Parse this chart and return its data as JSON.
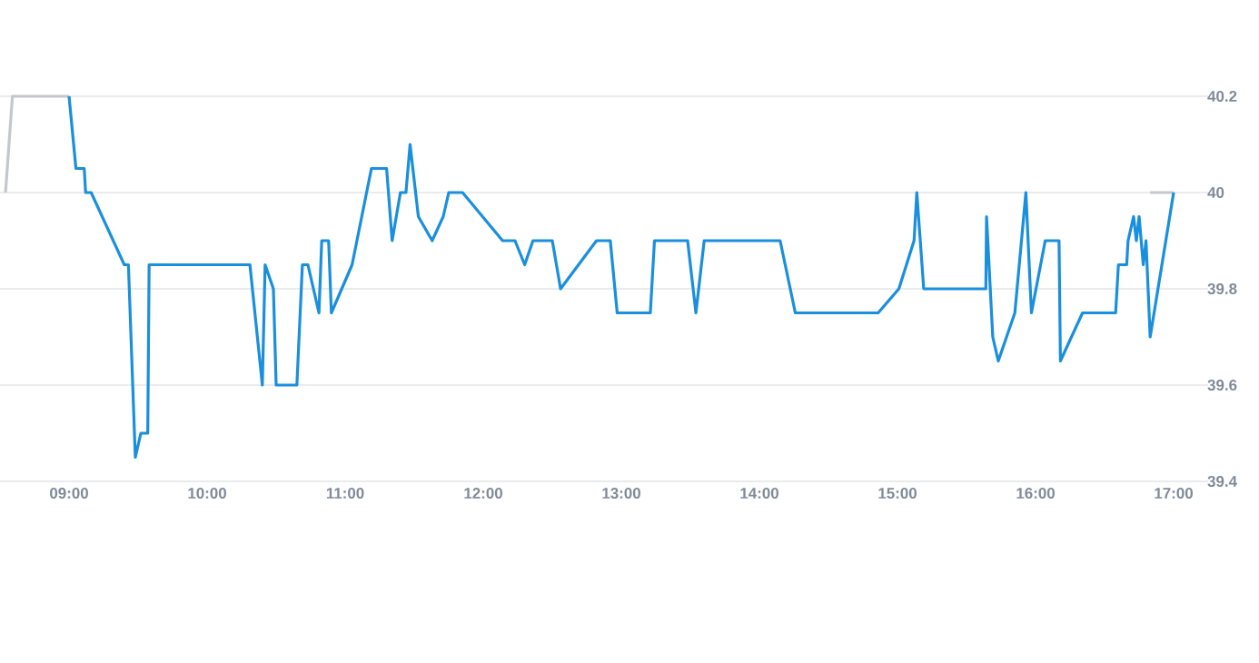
{
  "chart_data": {
    "type": "line",
    "xlim": [
      8.5,
      17.25
    ],
    "ylim": [
      39.4,
      40.2
    ],
    "xticks": [
      {
        "value": 9,
        "label": "09:00"
      },
      {
        "value": 10,
        "label": "10:00"
      },
      {
        "value": 11,
        "label": "11:00"
      },
      {
        "value": 12,
        "label": "12:00"
      },
      {
        "value": 13,
        "label": "13:00"
      },
      {
        "value": 14,
        "label": "14:00"
      },
      {
        "value": 15,
        "label": "15:00"
      },
      {
        "value": 16,
        "label": "16:00"
      },
      {
        "value": 17,
        "label": "17:00"
      }
    ],
    "yticks": [
      39.4,
      39.6,
      39.8,
      40,
      40.2
    ],
    "grid": "y",
    "marker": "none",
    "line_style": "solid",
    "series": [
      {
        "color": "#c3c8cd",
        "x": [
          8.54,
          8.59,
          9.0,
          12.0,
          16.83,
          17.0
        ],
        "values": [
          40,
          40.2,
          40.2,
          null,
          40,
          40
        ]
      },
      {
        "color": "#1a8fdd",
        "x": [
          9.0,
          9.05,
          9.11,
          9.12,
          9.16,
          9.4,
          9.43,
          9.48,
          9.52,
          9.57,
          9.58,
          10.31,
          10.4,
          10.42,
          10.48,
          10.5,
          10.65,
          10.69,
          10.73,
          10.81,
          10.83,
          10.88,
          10.9,
          11.05,
          11.19,
          11.3,
          11.34,
          11.4,
          11.44,
          11.47,
          11.53,
          11.63,
          11.71,
          11.75,
          11.85,
          12.14,
          12.23,
          12.3,
          12.36,
          12.5,
          12.56,
          12.82,
          12.92,
          12.97,
          13.21,
          13.24,
          13.48,
          13.54,
          13.6,
          14.15,
          14.26,
          14.86,
          15.01,
          15.12,
          15.14,
          15.19,
          15.64,
          15.645,
          15.69,
          15.73,
          15.85,
          15.93,
          15.97,
          16.07,
          16.17,
          16.18,
          16.34,
          16.58,
          16.6,
          16.66,
          16.67,
          16.71,
          16.73,
          16.75,
          16.78,
          16.8,
          16.83,
          17.0
        ],
        "values": [
          40.2,
          40.05,
          40.05,
          40.0,
          40.0,
          39.85,
          39.85,
          39.45,
          39.5,
          39.5,
          39.85,
          39.85,
          39.6,
          39.85,
          39.8,
          39.6,
          39.6,
          39.85,
          39.85,
          39.75,
          39.9,
          39.9,
          39.75,
          39.85,
          40.05,
          40.05,
          39.9,
          40.0,
          40.0,
          40.1,
          39.95,
          39.9,
          39.95,
          40.0,
          40.0,
          39.9,
          39.9,
          39.85,
          39.9,
          39.9,
          39.8,
          39.9,
          39.9,
          39.75,
          39.75,
          39.9,
          39.9,
          39.75,
          39.9,
          39.9,
          39.75,
          39.75,
          39.8,
          39.9,
          40.0,
          39.8,
          39.8,
          39.95,
          39.7,
          39.65,
          39.75,
          40.0,
          39.75,
          39.9,
          39.9,
          39.65,
          39.75,
          39.75,
          39.85,
          39.85,
          39.9,
          39.95,
          39.9,
          39.95,
          39.85,
          39.9,
          39.7,
          40.0
        ]
      }
    ]
  }
}
